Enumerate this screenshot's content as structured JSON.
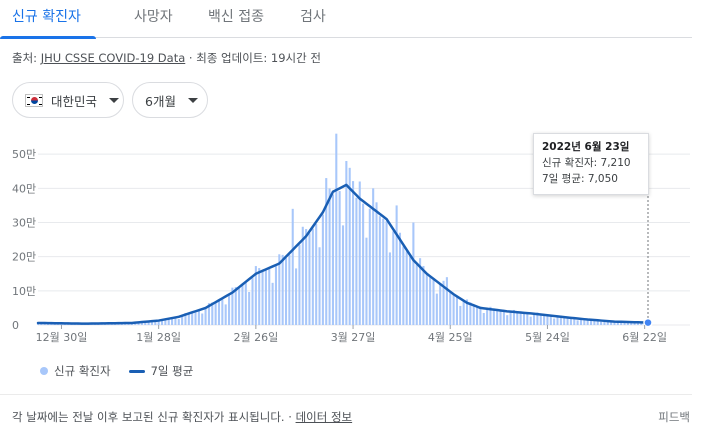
{
  "tabs": [
    {
      "label": "신규 확진자",
      "active": true
    },
    {
      "label": "사망자",
      "active": false
    },
    {
      "label": "백신 접종",
      "active": false
    },
    {
      "label": "검사",
      "active": false
    }
  ],
  "source": {
    "prefix": "출처:",
    "link": "JHU CSSE COVID-19 Data",
    "separator": " · ",
    "updated": "최종 업데이트: 19시간 전"
  },
  "filters": {
    "region": {
      "label": "대한민국",
      "icon": "korea-flag-icon"
    },
    "period": {
      "label": "6개월",
      "icon": "chevron-down-icon"
    }
  },
  "tooltip": {
    "date": "2022년 6월 23일",
    "new_cases": "신규 확진자: 7,210",
    "avg7": "7일 평균: 7,050"
  },
  "legend": {
    "cases": "신규 확진자",
    "avg": "7일 평균"
  },
  "footer": {
    "note": "각 날짜에는 전날 이후 보고된 신규 확진자가 표시됩니다.",
    "separator": " · ",
    "link": "데이터 정보",
    "feedback": "피드백"
  },
  "colors": {
    "accent": "#1a73e8",
    "bar": "#a8c7fa",
    "line": "#1a5fb4"
  },
  "chart_data": {
    "type": "bar",
    "x_range": [
      "2021-12-23",
      "2022-06-23"
    ],
    "ylim": [
      0,
      600000
    ],
    "ytick_labels": [
      "0",
      "10만",
      "20만",
      "30만",
      "40만",
      "50만"
    ],
    "ytick_values": [
      0,
      100000,
      200000,
      300000,
      400000,
      500000
    ],
    "xtick_labels": [
      "12월 30일",
      "1월 28일",
      "2월 26일",
      "3월 27일",
      "4월 25일",
      "5월 24일",
      "6월 22일"
    ],
    "xtick_days": [
      7,
      36,
      65,
      94,
      123,
      152,
      181
    ],
    "anchors": [
      [
        0,
        6000
      ],
      [
        14,
        4000
      ],
      [
        28,
        6000
      ],
      [
        36,
        13000
      ],
      [
        42,
        24000
      ],
      [
        50,
        50000
      ],
      [
        58,
        95000
      ],
      [
        65,
        150000
      ],
      [
        72,
        180000
      ],
      [
        80,
        260000
      ],
      [
        85,
        330000
      ],
      [
        88,
        390000
      ],
      [
        90,
        400000
      ],
      [
        92,
        410000
      ],
      [
        96,
        370000
      ],
      [
        100,
        340000
      ],
      [
        104,
        310000
      ],
      [
        108,
        250000
      ],
      [
        112,
        190000
      ],
      [
        116,
        150000
      ],
      [
        120,
        120000
      ],
      [
        124,
        90000
      ],
      [
        128,
        65000
      ],
      [
        132,
        50000
      ],
      [
        140,
        40000
      ],
      [
        148,
        33000
      ],
      [
        156,
        24000
      ],
      [
        164,
        16000
      ],
      [
        172,
        10000
      ],
      [
        182,
        7000
      ]
    ],
    "spikes": [
      [
        76,
        340000
      ],
      [
        86,
        430000
      ],
      [
        89,
        560000
      ],
      [
        92,
        480000
      ],
      [
        96,
        420000
      ],
      [
        100,
        400000
      ],
      [
        107,
        350000
      ],
      [
        112,
        300000
      ],
      [
        122,
        140000
      ]
    ],
    "series": [
      {
        "name": "신규 확진자",
        "kind": "bar",
        "color": "#a8c7fa"
      },
      {
        "name": "7일 평균",
        "kind": "line",
        "color": "#1a5fb4"
      }
    ],
    "highlight": {
      "day": 182,
      "date": "2022-06-23",
      "new_cases": 7210,
      "avg7": 7050
    }
  }
}
